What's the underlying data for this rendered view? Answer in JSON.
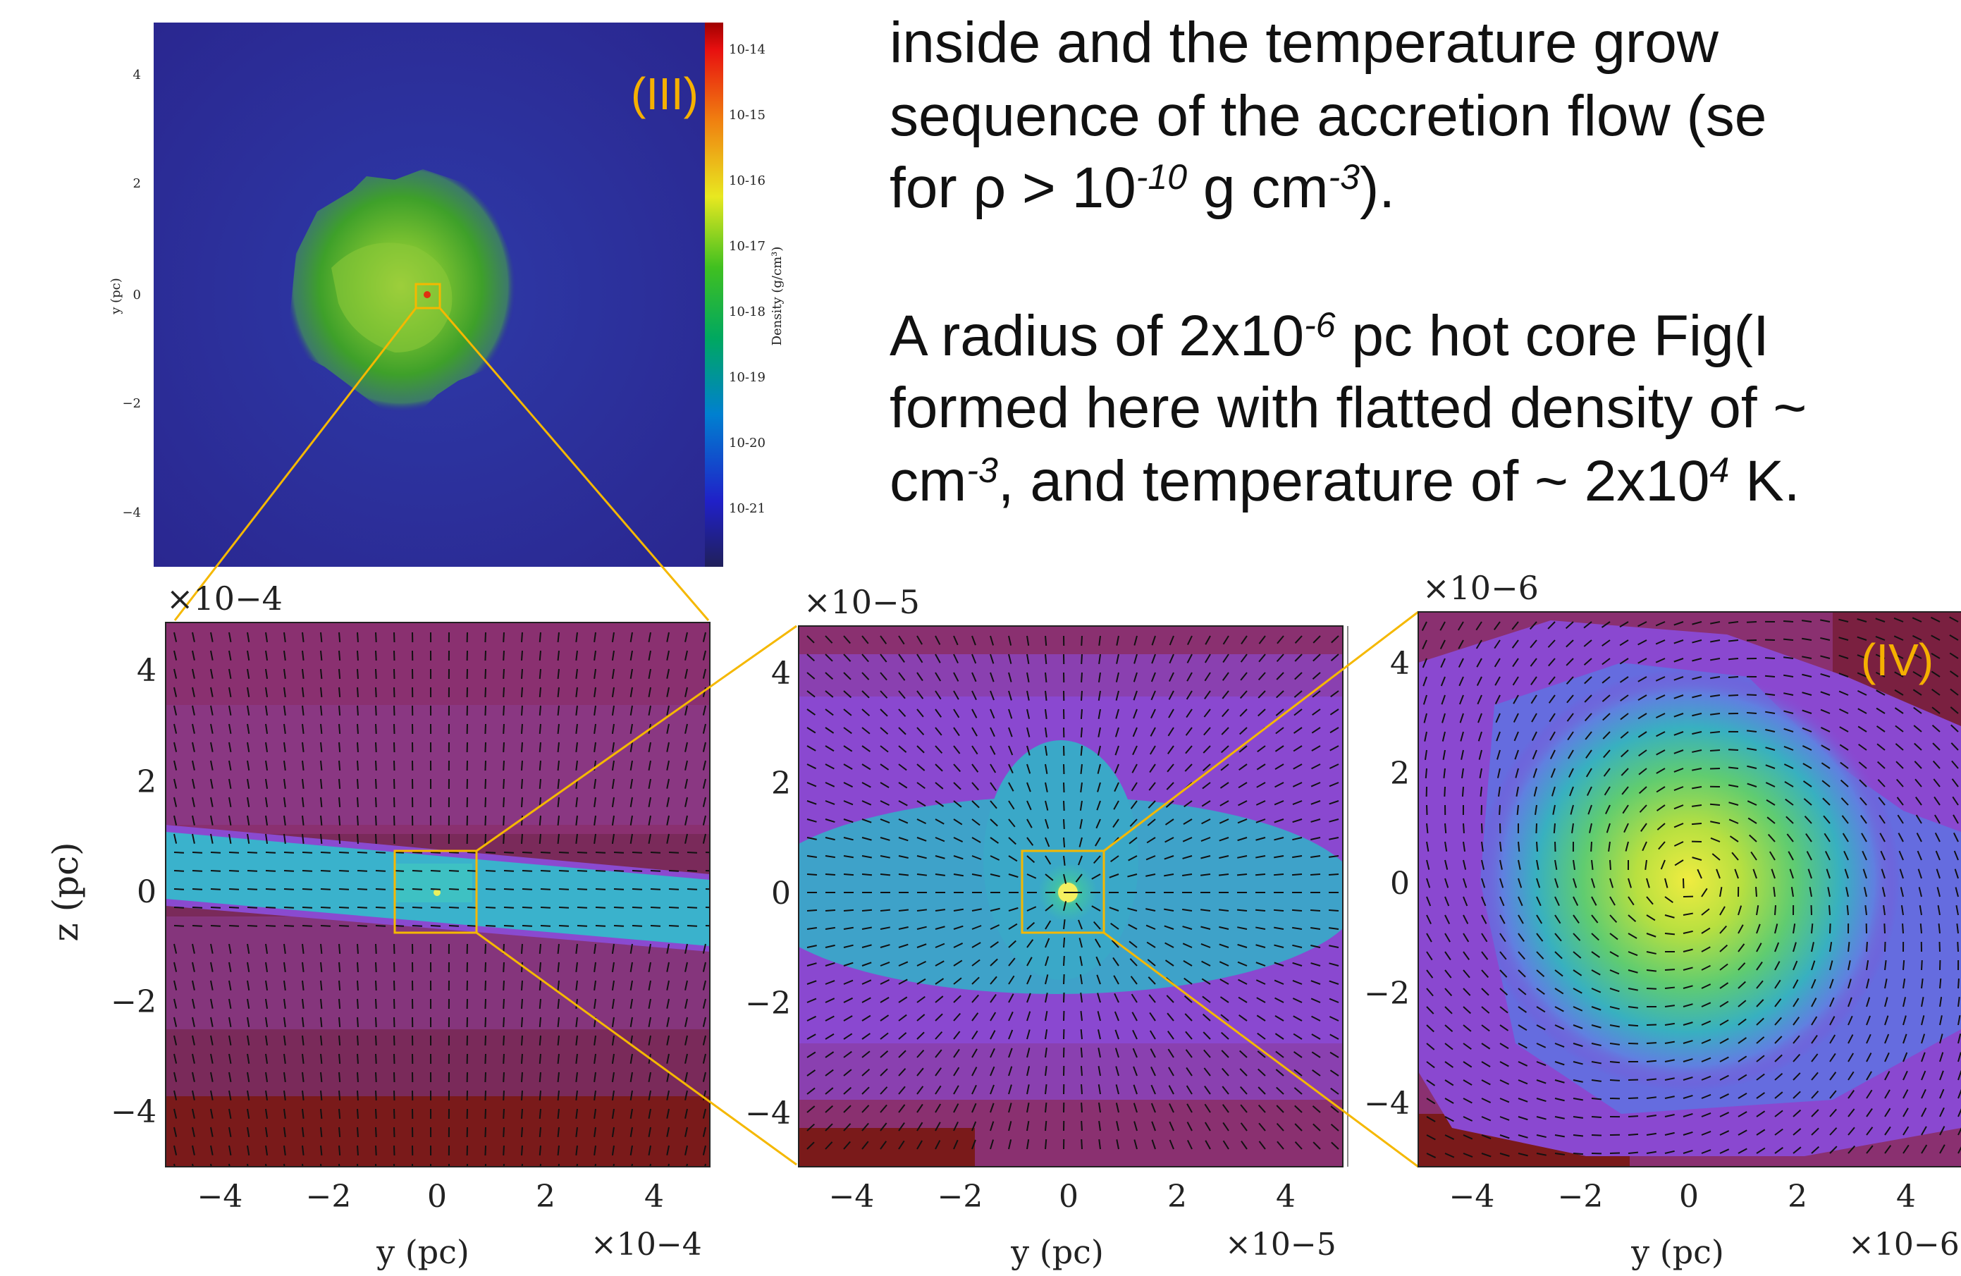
{
  "text_block": {
    "line1": "inside and the temperature grow",
    "line2": "sequence of the accretion flow (se",
    "line3_pre": "for ρ > 10",
    "line3_sup1": "-10",
    "line3_mid": " g cm",
    "line3_sup2": "-3",
    "line3_post": ").",
    "line4_pre": "A radius of 2x10",
    "line4_sup": "-6",
    "line4_post": " pc hot core Fig(I",
    "line5": "formed here with flatted density of ~",
    "line6_pre": "cm",
    "line6_sup1": "-3",
    "line6_mid": ", and temperature of ~ 2x10",
    "line6_sup2": "4",
    "line6_post": " K."
  },
  "top_panel": {
    "label": "(III)",
    "y_axis_label": "y (pc)",
    "y_ticks": [
      "4",
      "2",
      "0",
      "−2",
      "−4"
    ],
    "colorbar_label": "Density (g/cm³)",
    "colorbar_ticks": [
      "10-14",
      "10-15",
      "10-16",
      "10-17",
      "10-18",
      "10-19",
      "10-20",
      "10-21"
    ]
  },
  "panels": [
    {
      "id": "left",
      "scale_top": "×10−4",
      "scale_bottom": "×10−4",
      "x_ticks": [
        "−4",
        "−2",
        "0",
        "2",
        "4"
      ],
      "y_ticks": [
        "4",
        "2",
        "0",
        "−2",
        "−4"
      ],
      "x_label": "y (pc)",
      "y_label": "z (pc)"
    },
    {
      "id": "middle",
      "scale_top": "×10−5",
      "scale_bottom": "×10−5",
      "x_ticks": [
        "−4",
        "−2",
        "0",
        "2",
        "4"
      ],
      "y_ticks": [
        "4",
        "2",
        "0",
        "−2",
        "−4"
      ],
      "x_label": "y (pc)"
    },
    {
      "id": "right",
      "label": "(IV)",
      "scale_top": "×10−6",
      "scale_bottom": "×10−6",
      "x_ticks": [
        "−4",
        "−2",
        "0",
        "2",
        "4"
      ],
      "y_ticks": [
        "4",
        "2",
        "0",
        "−2",
        "−4"
      ],
      "x_label": "y (pc)"
    }
  ],
  "colors": {
    "highlight": "#f5b800",
    "label_color": "#f5b000",
    "dark_red": "#7a1a1a",
    "purple": "#8a45c8",
    "cyan": "#2ab0c8",
    "green": "#5ec848",
    "yellow": "#e8e840",
    "navy": "#2a2aa0"
  }
}
